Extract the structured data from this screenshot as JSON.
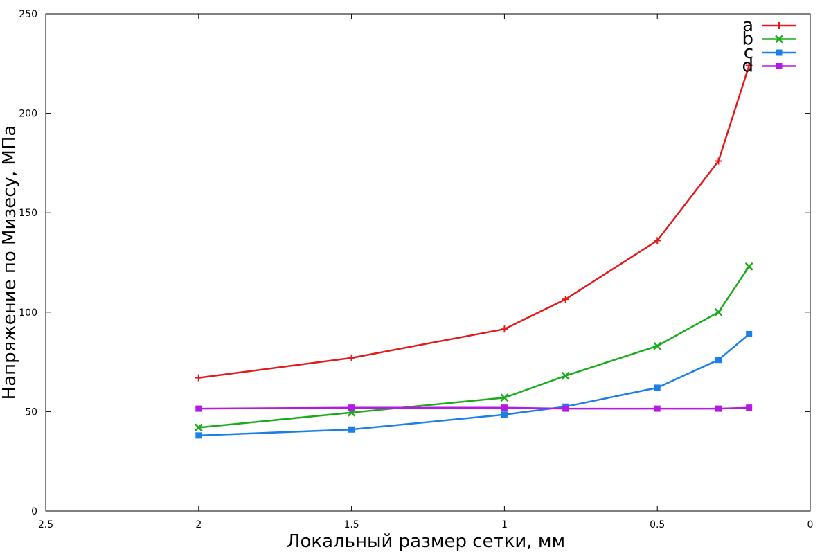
{
  "chart_data": {
    "type": "line",
    "xlabel": "Локальный размер сетки, мм",
    "ylabel": "Напряжение по Мизесу, МПа",
    "xlim": [
      2.5,
      0
    ],
    "ylim": [
      0,
      250
    ],
    "x_reversed": true,
    "grid": false,
    "legend_position": "top-right",
    "x_ticks": [
      2.5,
      2,
      1.5,
      1,
      0.5,
      0
    ],
    "x_tick_labels": [
      "2.5",
      "2",
      "1.5",
      "1",
      "0.5",
      "0"
    ],
    "y_ticks": [
      0,
      50,
      100,
      150,
      200,
      250
    ],
    "y_tick_labels": [
      "0",
      "50",
      "100",
      "150",
      "200",
      "250"
    ],
    "x": [
      2,
      1.5,
      1,
      0.8,
      0.5,
      0.3,
      0.2
    ],
    "series": [
      {
        "name": "a",
        "color": "#e31a1c",
        "marker": "plus",
        "values": [
          67,
          77,
          91.5,
          106.5,
          136,
          176,
          224
        ]
      },
      {
        "name": "b",
        "color": "#1aab1a",
        "marker": "cross",
        "values": [
          42,
          49.5,
          57,
          68,
          83,
          100,
          123
        ]
      },
      {
        "name": "c",
        "color": "#1a7fe6",
        "marker": "square",
        "values": [
          38,
          41,
          48.5,
          52.5,
          62,
          76,
          89
        ]
      },
      {
        "name": "d",
        "color": "#b31ae6",
        "marker": "square",
        "values": [
          51.5,
          52,
          52,
          51.5,
          51.5,
          51.5,
          52
        ]
      }
    ]
  }
}
